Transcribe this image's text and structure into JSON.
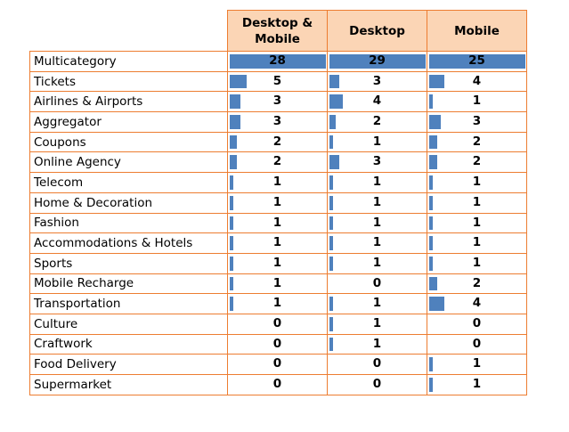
{
  "chart_data": {
    "type": "table",
    "columns": [
      "Desktop &\nMobile",
      "Desktop",
      "Mobile"
    ],
    "categories": [
      "Multicategory",
      "Tickets",
      "Airlines & Airports",
      "Aggregator",
      "Coupons",
      "Online Agency",
      "Telecom",
      "Home & Decoration",
      "Fashion",
      "Accommodations & Hotels",
      "Sports",
      "Mobile Recharge",
      "Transportation",
      "Culture",
      "Craftwork",
      "Food Delivery",
      "Supermarket"
    ],
    "series": [
      {
        "values": [
          28,
          5,
          3,
          3,
          2,
          2,
          1,
          1,
          1,
          1,
          1,
          1,
          1,
          0,
          0,
          0,
          0
        ]
      },
      {
        "values": [
          29,
          3,
          4,
          2,
          1,
          3,
          1,
          1,
          1,
          1,
          1,
          0,
          1,
          1,
          1,
          0,
          0
        ]
      },
      {
        "values": [
          25,
          4,
          1,
          3,
          2,
          2,
          1,
          1,
          1,
          1,
          1,
          2,
          4,
          0,
          0,
          1,
          1
        ]
      }
    ],
    "bar_color": "#4F81BD",
    "header_fill": "#FBD5B5",
    "border_color": "#ED7D31"
  }
}
